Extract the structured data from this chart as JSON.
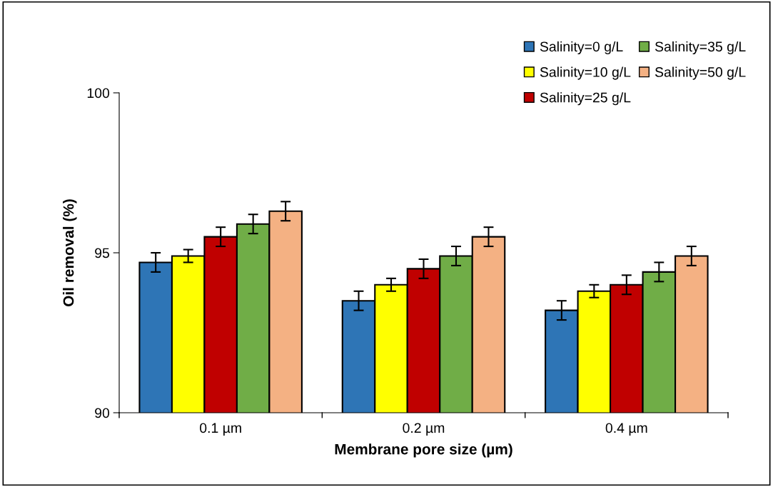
{
  "chart_data": {
    "type": "bar",
    "xlabel": "Membrane pore size (µm)",
    "ylabel": "Oil removal (%)",
    "categories": [
      "0.1 µm",
      "0.2 µm",
      "0.4 µm"
    ],
    "series": [
      {
        "name": "Salinity=0 g/L",
        "color": "#2e75b6",
        "values": [
          94.7,
          93.5,
          93.2
        ],
        "errors": [
          0.3,
          0.3,
          0.3
        ]
      },
      {
        "name": "Salinity=10 g/L",
        "color": "#ffff00",
        "values": [
          94.9,
          94.0,
          93.8
        ],
        "errors": [
          0.2,
          0.2,
          0.2
        ]
      },
      {
        "name": "Salinity=25 g/L",
        "color": "#c00000",
        "values": [
          95.5,
          94.5,
          94.0
        ],
        "errors": [
          0.3,
          0.3,
          0.3
        ]
      },
      {
        "name": "Salinity=35 g/L",
        "color": "#70ad47",
        "values": [
          95.9,
          94.9,
          94.4
        ],
        "errors": [
          0.3,
          0.3,
          0.3
        ]
      },
      {
        "name": "Salinity=50 g/L",
        "color": "#f4b183",
        "values": [
          96.3,
          95.5,
          94.9
        ],
        "errors": [
          0.3,
          0.3,
          0.3
        ]
      }
    ],
    "ylim": [
      90,
      100
    ],
    "yticks": [
      90,
      95,
      100
    ],
    "grid": false,
    "legend": "top right"
  }
}
